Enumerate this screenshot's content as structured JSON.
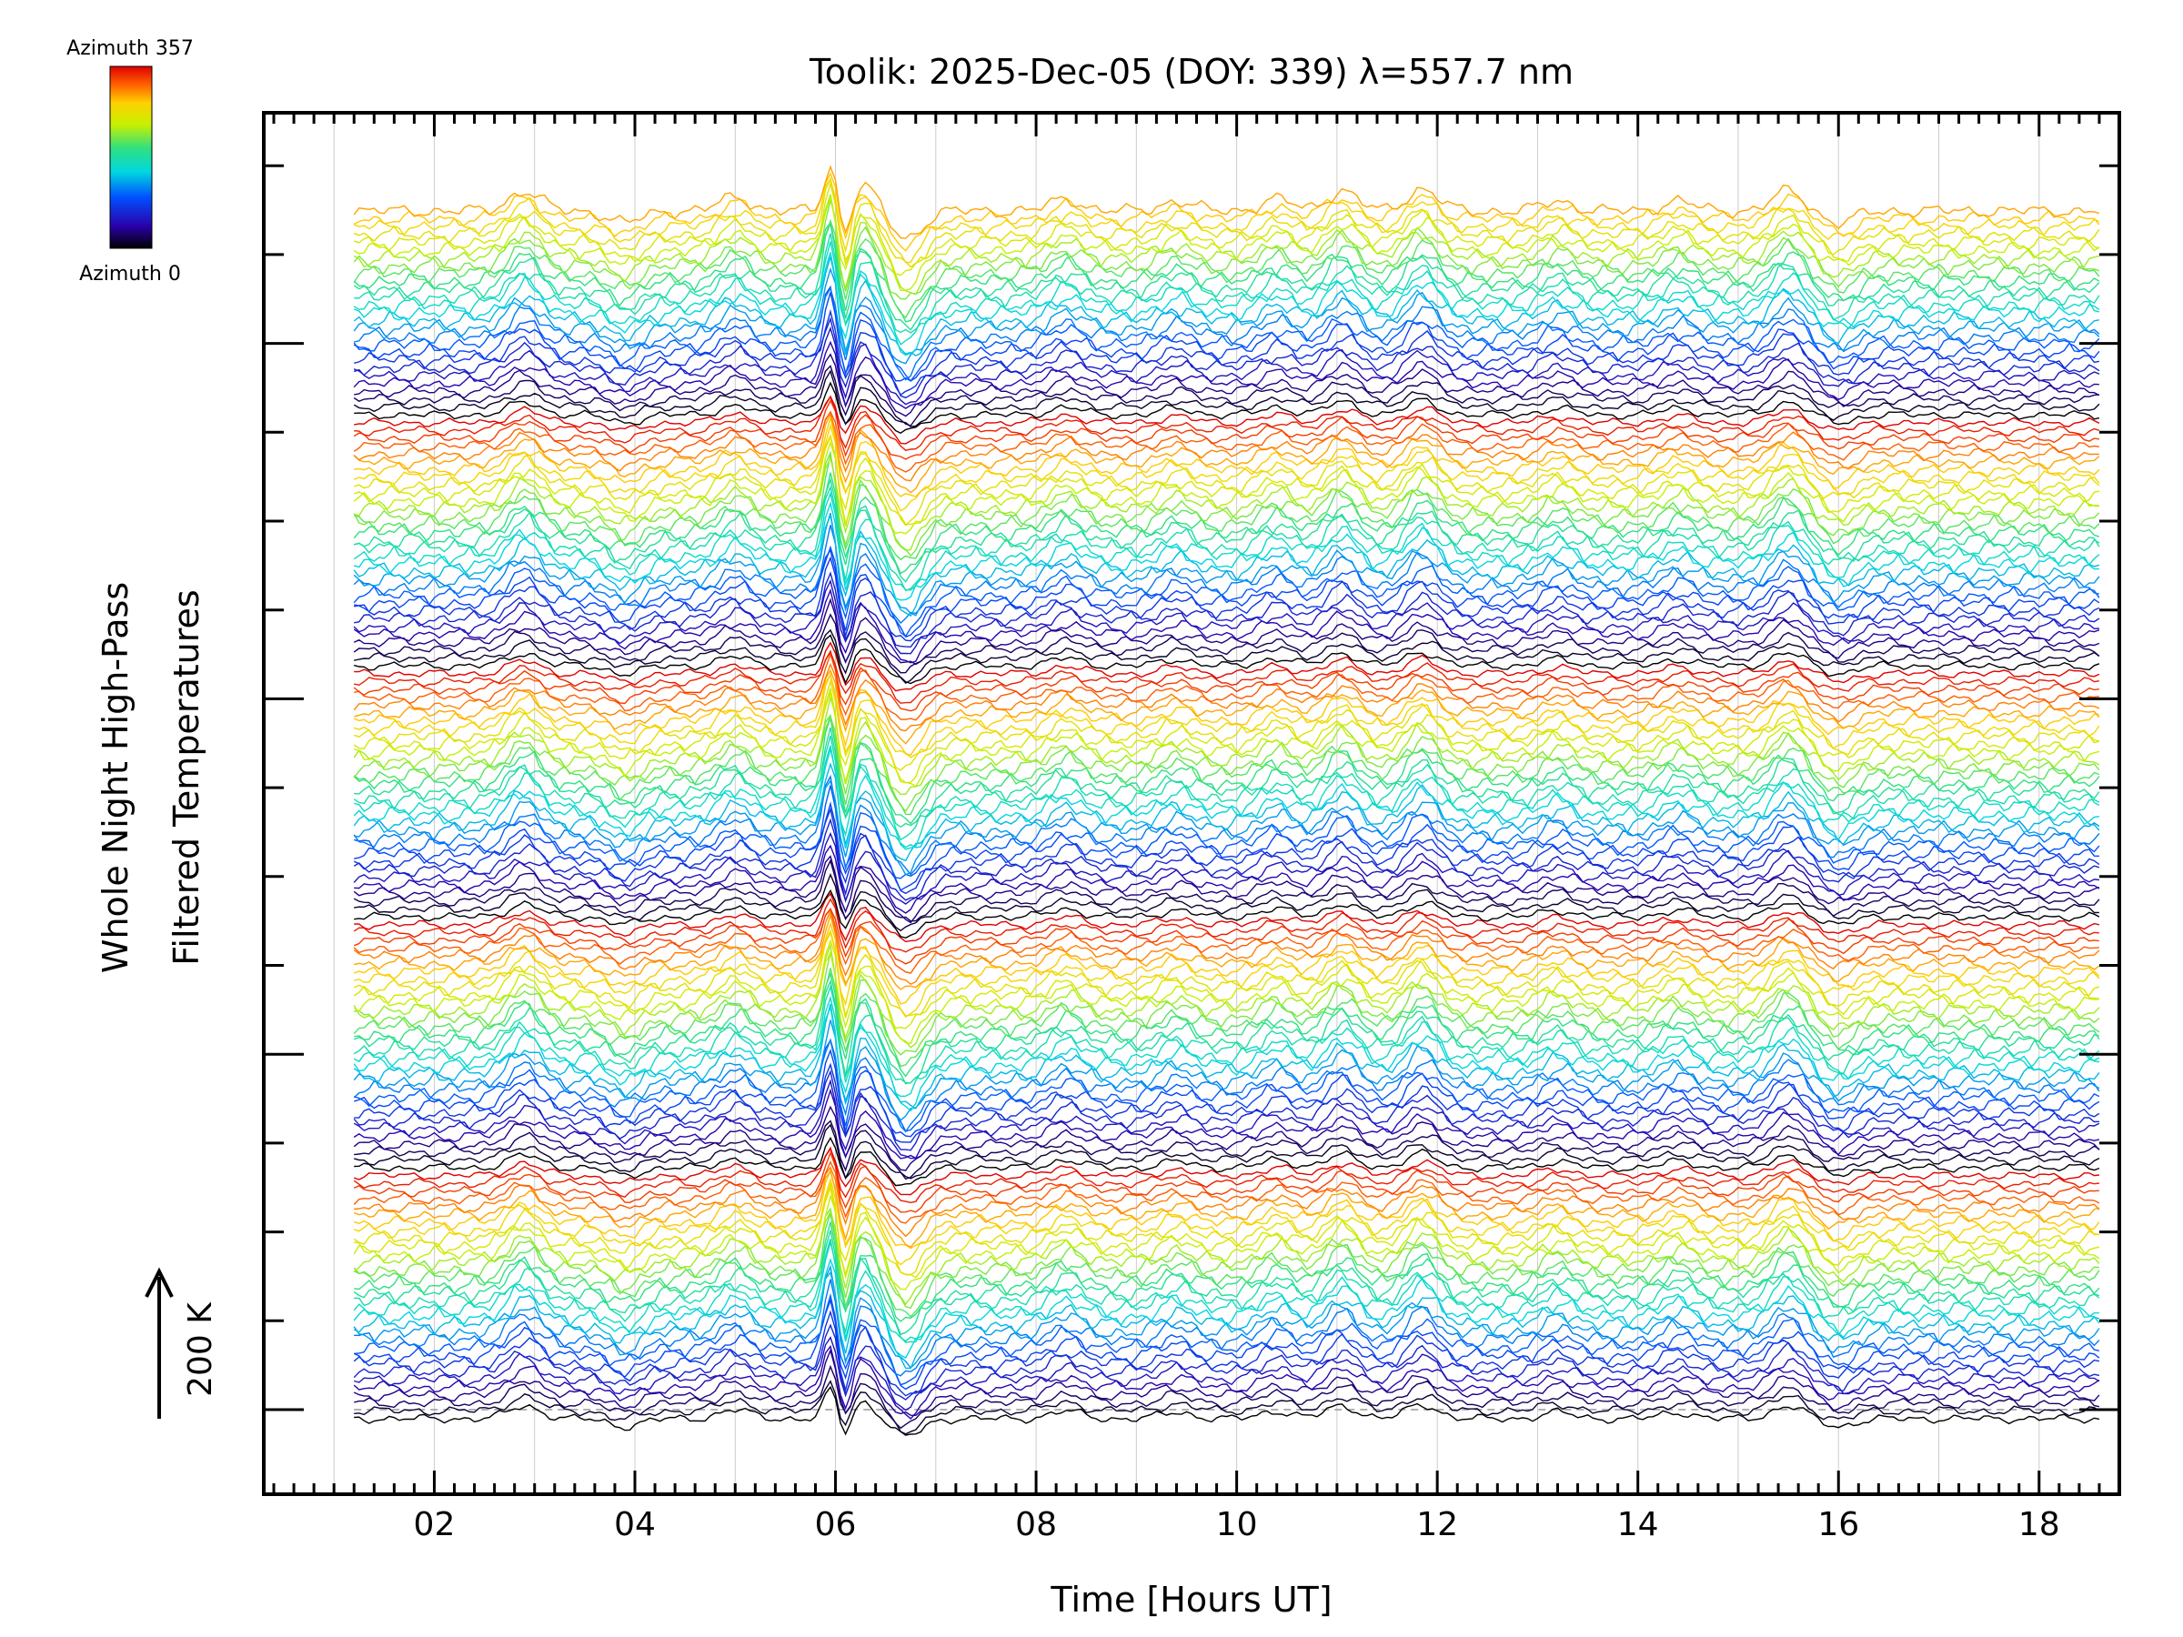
{
  "chart_data": {
    "type": "line",
    "title": "Toolik: 2025-Dec-05 (DOY: 339) λ=557.7 nm",
    "xlabel": "Time [Hours UT]",
    "ylabel_line1": "Whole Night High-Pass",
    "ylabel_line2": "Filtered Temperatures",
    "xlim": [
      0.3,
      18.8
    ],
    "x_data_range": [
      1.2,
      18.6
    ],
    "x_ticks": [
      2,
      4,
      6,
      8,
      10,
      12,
      14,
      16,
      18
    ],
    "x_tick_labels": [
      "02",
      "04",
      "06",
      "08",
      "10",
      "12",
      "14",
      "16",
      "18"
    ],
    "n_traces": 155,
    "azimuth_min": 0,
    "azimuth_max": 357,
    "traces_per_azimuth_cycle": 32,
    "colorbar_top_label": "Azimuth 357",
    "colorbar_bottom_label": "Azimuth 0",
    "scale_bar_label": "200 K",
    "features": [
      {
        "time": 2.9,
        "amplitude": 1.0,
        "note": "peak"
      },
      {
        "time": 3.9,
        "amplitude": -0.6,
        "note": "dip"
      },
      {
        "time": 5.0,
        "amplitude": 0.7,
        "note": "rise"
      },
      {
        "time": 5.95,
        "amplitude": 2.2,
        "note": "sharp spike"
      },
      {
        "time": 6.1,
        "amplitude": -2.0,
        "note": "sharp drop"
      },
      {
        "time": 6.25,
        "amplitude": 1.4,
        "note": "rebound"
      },
      {
        "time": 6.7,
        "amplitude": -1.4,
        "note": "trough"
      },
      {
        "time": 8.3,
        "amplitude": 0.6,
        "note": "bump"
      },
      {
        "time": 9.4,
        "amplitude": 0.5,
        "note": "bump"
      },
      {
        "time": 10.4,
        "amplitude": 0.6,
        "note": "bump"
      },
      {
        "time": 11.05,
        "amplitude": 1.0,
        "note": "spike"
      },
      {
        "time": 11.85,
        "amplitude": 1.1,
        "note": "spike"
      },
      {
        "time": 13.2,
        "amplitude": 0.5,
        "note": "bump"
      },
      {
        "time": 14.4,
        "amplitude": 0.5,
        "note": "bump"
      },
      {
        "time": 15.5,
        "amplitude": 1.0,
        "note": "peak"
      },
      {
        "time": 16.0,
        "amplitude": -0.6,
        "note": "dip"
      }
    ],
    "series_note": "Stacked high-pass filtered temperature traces, one per sky sector, coloured by azimuth"
  }
}
